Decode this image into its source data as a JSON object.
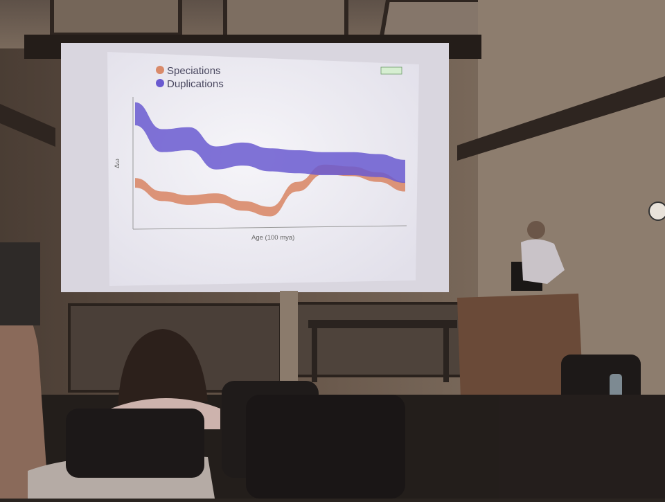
{
  "scene": {
    "description_type": "photo-of-lecture-hall-projection",
    "colors": {
      "speciations": "#d98a6a",
      "duplications": "#6a5ad0",
      "screen": "#f3f2f6",
      "room": "#5b4b40"
    }
  },
  "slide": {
    "legend": [
      {
        "label": "Speciations",
        "color": "#d98a6a"
      },
      {
        "label": "Duplications",
        "color": "#6a5ad0"
      }
    ],
    "ylabel": "Δω",
    "xlabel": "Age (100 mya)"
  },
  "chart_data": {
    "type": "line",
    "title": "",
    "xlabel": "Age (100 mya)",
    "ylabel": "Δω",
    "legend_position": "top-left",
    "grid": false,
    "series": [
      {
        "name": "Speciations",
        "x": [
          0,
          0.5,
          1,
          1.5,
          2,
          2.5,
          3,
          3.5,
          4,
          4.5,
          5
        ],
        "y": [
          0.12,
          0.05,
          0.03,
          0.04,
          0.0,
          -0.03,
          0.1,
          0.19,
          0.18,
          0.15,
          0.1
        ]
      },
      {
        "name": "Duplications",
        "x": [
          0,
          0.5,
          1,
          1.5,
          2,
          2.5,
          3,
          3.5,
          4,
          4.5,
          5
        ],
        "y": [
          0.48,
          0.34,
          0.35,
          0.25,
          0.27,
          0.24,
          0.23,
          0.22,
          0.22,
          0.21,
          0.18
        ]
      }
    ]
  }
}
